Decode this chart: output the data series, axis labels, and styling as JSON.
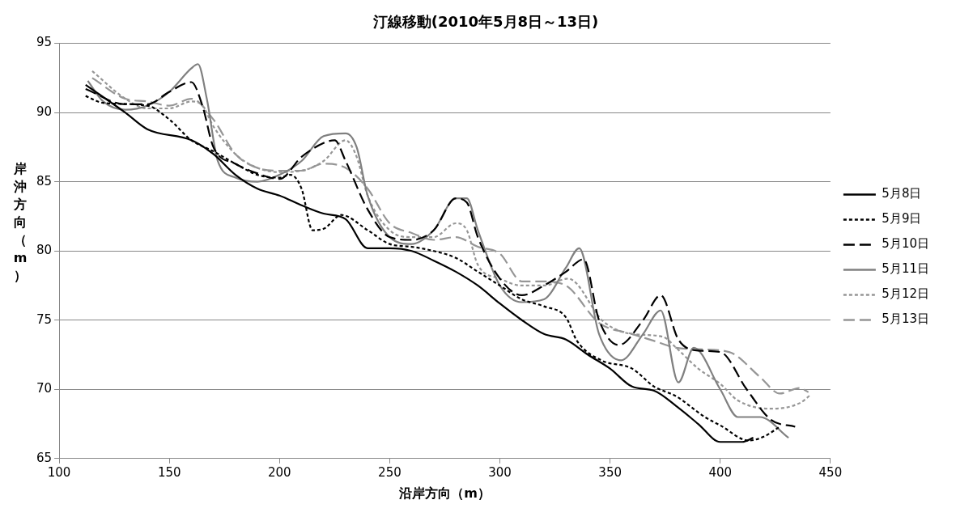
{
  "chart_data": {
    "type": "line",
    "title": "汀線移動(2010年5月8日～13日)",
    "xlabel": "沿岸方向（m）",
    "ylabel": "岸沖方向（m）",
    "xlim": [
      100,
      450
    ],
    "xticks": [
      100,
      150,
      200,
      250,
      300,
      350,
      400,
      450
    ],
    "ylim": [
      65,
      95
    ],
    "yticks": [
      65,
      70,
      75,
      80,
      85,
      90,
      95
    ],
    "grid": "y",
    "legend": "right",
    "marker": "none",
    "series": [
      {
        "name": "5月8日",
        "color": "#000000",
        "line_style": "solid",
        "x": [
          112,
          130,
          140,
          160,
          170,
          180,
          190,
          200,
          210,
          220,
          230,
          240,
          250,
          260,
          270,
          280,
          290,
          300,
          310,
          320,
          330,
          340,
          350,
          360,
          370,
          380,
          390,
          400,
          410,
          415
        ],
        "values": [
          92,
          90,
          88.8,
          88,
          87,
          85.5,
          84.5,
          84,
          83.3,
          82.7,
          82.3,
          80.2,
          80.2,
          80,
          79.3,
          78.5,
          77.5,
          76.2,
          75,
          74,
          73.6,
          72.5,
          71.5,
          70.2,
          69.9,
          68.8,
          67.5,
          66.2,
          66.2,
          66.5
        ]
      },
      {
        "name": "5月9日",
        "color": "#000000",
        "line_style": "dotted",
        "x": [
          112,
          120,
          140,
          150,
          160,
          170,
          180,
          190,
          200,
          205,
          210,
          215,
          220,
          228,
          240,
          250,
          260,
          270,
          280,
          290,
          300,
          310,
          320,
          330,
          335,
          346,
          360,
          370,
          380,
          393,
          400,
          413,
          420,
          427
        ],
        "values": [
          91.2,
          90.7,
          90.5,
          89.5,
          88,
          87.2,
          86.3,
          85.5,
          85.3,
          85.5,
          84.5,
          81.5,
          81.6,
          82.6,
          81.5,
          80.5,
          80.3,
          80,
          79.5,
          78.5,
          77.5,
          76.5,
          76,
          75.2,
          73.5,
          72.1,
          71.5,
          70.2,
          69.5,
          68,
          67.4,
          66.3,
          66.6,
          67.3
        ]
      },
      {
        "name": "5月10日",
        "color": "#000000",
        "line_style": "dashed",
        "x": [
          112,
          130,
          140,
          150,
          160,
          165,
          170,
          180,
          190,
          200,
          210,
          220,
          225,
          230,
          240,
          250,
          260,
          270,
          280,
          285,
          290,
          300,
          310,
          320,
          330,
          338,
          345,
          354,
          365,
          373,
          381,
          390,
          400,
          412,
          423,
          434
        ],
        "values": [
          91.7,
          90.6,
          90.6,
          91.5,
          92.2,
          90.5,
          87.5,
          86.3,
          85.6,
          85.2,
          86.8,
          87.8,
          88,
          86.5,
          83,
          81,
          80.8,
          81.5,
          83.8,
          83.5,
          81,
          78,
          76.8,
          77.5,
          78.5,
          79.4,
          75,
          73.2,
          75,
          76.8,
          73.6,
          72.8,
          72.7,
          70,
          67.8,
          67.3
        ]
      },
      {
        "name": "5月11日",
        "color": "#808080",
        "line_style": "solid",
        "x": [
          113,
          120,
          130,
          140,
          150,
          160,
          163,
          167,
          172,
          180,
          190,
          200,
          210,
          220,
          230,
          235,
          240,
          250,
          260,
          270,
          280,
          285,
          290,
          300,
          310,
          320,
          330,
          336,
          345,
          355,
          365,
          373,
          381,
          388,
          400,
          408,
          418,
          431
        ],
        "values": [
          92.3,
          90.8,
          90.2,
          90.5,
          91.5,
          93.2,
          93.5,
          91,
          86.5,
          85.3,
          85,
          85.5,
          86.5,
          88.3,
          88.5,
          87.5,
          84,
          81,
          80.5,
          81.5,
          83.8,
          83.8,
          81.5,
          77.5,
          76.3,
          76.5,
          78.8,
          80.2,
          74,
          72.1,
          74,
          75.7,
          70.5,
          73,
          70,
          68,
          68,
          66.5
        ]
      },
      {
        "name": "5月12日",
        "color": "#969696",
        "line_style": "dotted",
        "x": [
          115,
          130,
          140,
          150,
          160,
          165,
          170,
          180,
          190,
          200,
          210,
          220,
          230,
          235,
          240,
          250,
          260,
          270,
          280,
          285,
          290,
          300,
          310,
          320,
          331,
          347,
          360,
          374,
          380,
          390,
          400,
          408,
          423,
          436,
          441
        ],
        "values": [
          93,
          91,
          90.3,
          90.3,
          90.8,
          90.5,
          89,
          87,
          86,
          85.7,
          85.8,
          86.5,
          88,
          86.8,
          84,
          81.5,
          81,
          81,
          82,
          81.5,
          79,
          78,
          77.5,
          77.5,
          78,
          74.9,
          74,
          73.8,
          73,
          71.5,
          70.4,
          69.2,
          68.6,
          69,
          69.6
        ]
      },
      {
        "name": "5月13日",
        "color": "#969696",
        "line_style": "dashed",
        "x": [
          115,
          130,
          140,
          150,
          160,
          170,
          180,
          190,
          200,
          210,
          220,
          230,
          240,
          250,
          260,
          270,
          280,
          290,
          300,
          310,
          320,
          330,
          345,
          360,
          370,
          380,
          390,
          404,
          418,
          427,
          436,
          440
        ],
        "values": [
          92.5,
          91,
          90.8,
          90.5,
          91,
          89.5,
          87,
          86,
          85.8,
          85.8,
          86.3,
          86,
          84.5,
          82,
          81.3,
          80.8,
          81,
          80.3,
          79.8,
          77.8,
          77.8,
          77.5,
          74.8,
          74,
          73.5,
          73,
          72.9,
          72.7,
          70.9,
          69.7,
          70.1,
          69.8
        ]
      }
    ]
  }
}
